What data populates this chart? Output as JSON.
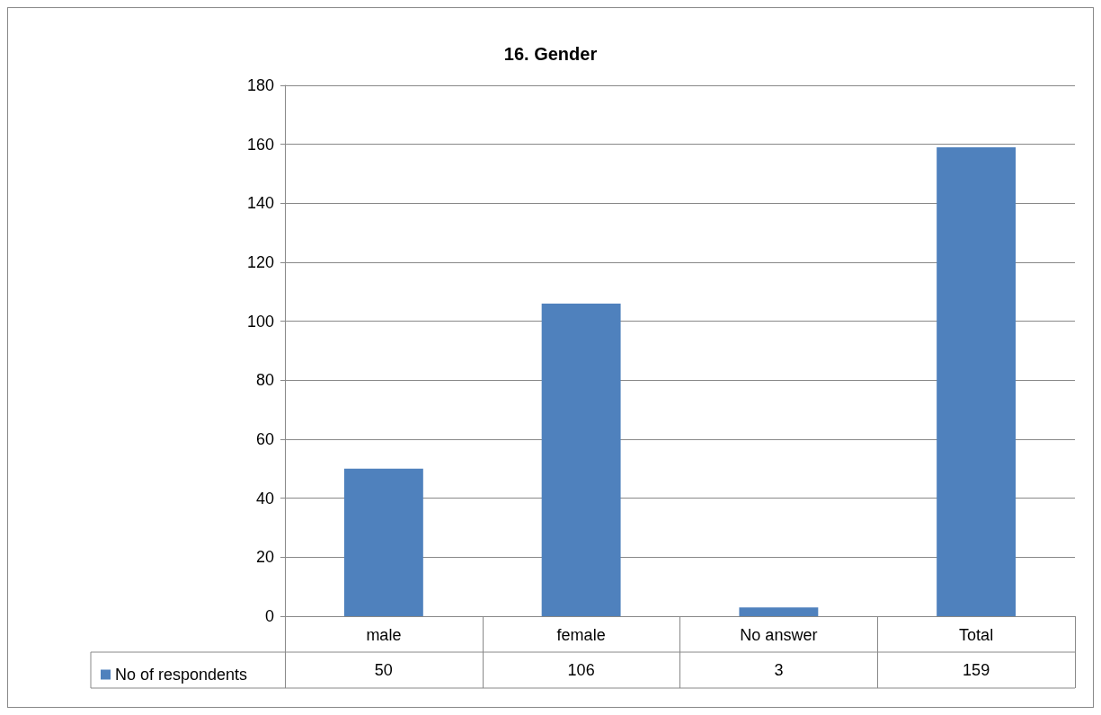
{
  "chart_data": {
    "type": "bar",
    "title": "16. Gender",
    "categories": [
      "male",
      "female",
      "No answer",
      "Total"
    ],
    "series": [
      {
        "name": "No of respondents",
        "color": "#4f81bd",
        "values": [
          50,
          106,
          3,
          159
        ]
      }
    ],
    "ylim": [
      0,
      180
    ],
    "yticks": [
      0,
      20,
      40,
      60,
      80,
      100,
      120,
      140,
      160,
      180
    ],
    "grid": "y",
    "data_labels": true,
    "legend": "bottom left"
  }
}
